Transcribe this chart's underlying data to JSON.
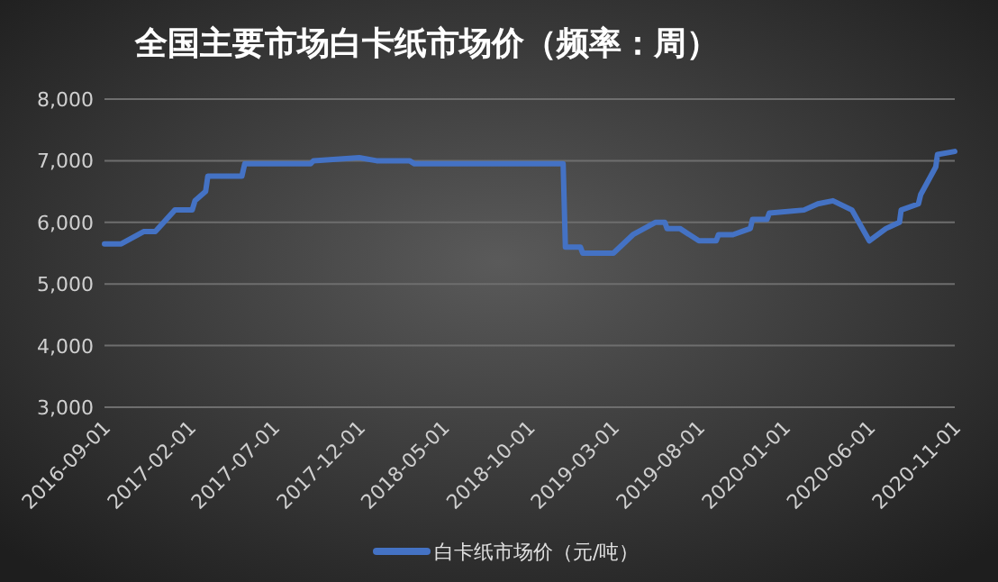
{
  "chart_data": {
    "type": "line",
    "title": "全国主要市场白卡纸市场价（频率：周）",
    "x": [
      "2016-09-01",
      "2016-10-01",
      "2016-11-10",
      "2016-12-01",
      "2017-01-05",
      "2017-02-05",
      "2017-02-10",
      "2017-03-01",
      "2017-03-05",
      "2017-05-05",
      "2017-05-10",
      "2017-09-05",
      "2017-09-10",
      "2017-12-01",
      "2018-01-01",
      "2018-03-01",
      "2018-03-10",
      "2018-12-01",
      "2018-12-05",
      "2019-01-01",
      "2019-01-05",
      "2019-03-01",
      "2019-04-05",
      "2019-05-15",
      "2019-06-01",
      "2019-06-05",
      "2019-06-28",
      "2019-08-01",
      "2019-09-01",
      "2019-09-05",
      "2019-10-01",
      "2019-11-01",
      "2019-11-05",
      "2019-12-01",
      "2019-12-05",
      "2020-02-05",
      "2020-03-01",
      "2020-03-28",
      "2020-05-01",
      "2020-06-01",
      "2020-07-01",
      "2020-07-25",
      "2020-07-28",
      "2020-08-28",
      "2020-09-01",
      "2020-09-28",
      "2020-10-01",
      "2020-11-01"
    ],
    "series": [
      {
        "name": "白卡纸市场价（元/吨）",
        "color": "#4472c4",
        "values": [
          5650,
          5650,
          5850,
          5850,
          6200,
          6200,
          6350,
          6500,
          6750,
          6750,
          6950,
          6950,
          7000,
          7050,
          7000,
          7000,
          6950,
          6950,
          5600,
          5600,
          5500,
          5500,
          5800,
          6000,
          6000,
          5900,
          5900,
          5700,
          5700,
          5800,
          5800,
          5900,
          6050,
          6050,
          6150,
          6200,
          6300,
          6350,
          6200,
          5700,
          5900,
          6000,
          6200,
          6300,
          6450,
          6900,
          7100,
          7150
        ]
      }
    ],
    "xlim": [
      "2016-09-01",
      "2020-11-01"
    ],
    "xticks": [
      "2016-09-01",
      "2017-02-01",
      "2017-07-01",
      "2017-12-01",
      "2018-05-01",
      "2018-10-01",
      "2019-03-01",
      "2019-08-01",
      "2020-01-01",
      "2020-06-01",
      "2020-11-01"
    ],
    "ylim": [
      3000,
      8000
    ],
    "yticks": [
      {
        "value": 3000,
        "label": "3,000"
      },
      {
        "value": 4000,
        "label": "4,000"
      },
      {
        "value": 5000,
        "label": "5,000"
      },
      {
        "value": 6000,
        "label": "6,000"
      },
      {
        "value": 7000,
        "label": "7,000"
      },
      {
        "value": 8000,
        "label": "8,000"
      }
    ],
    "grid": "y",
    "legend": "bottom",
    "line_style": "solid",
    "marker": "none"
  }
}
